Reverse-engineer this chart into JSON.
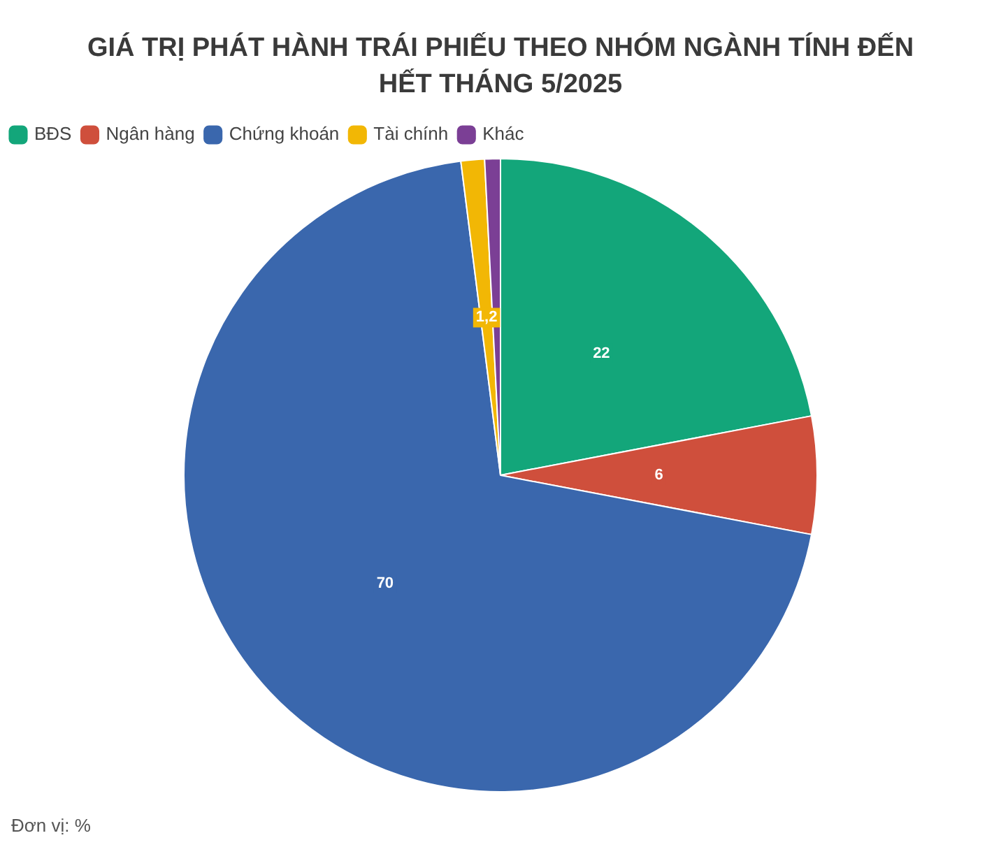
{
  "chart_data": {
    "type": "pie",
    "title": "GIÁ TRỊ PHÁT HÀNH TRÁI PHIẾU THEO NHÓM NGÀNH TÍNH ĐẾN HẾT THÁNG 5/2025",
    "categories": [
      "BĐS",
      "Ngân hàng",
      "Chứng khoán",
      "Tài chính",
      "Khác"
    ],
    "values": [
      22,
      6,
      70,
      1.2,
      0.8
    ],
    "colors": [
      "#13a67a",
      "#cf4f3c",
      "#3a67ad",
      "#f2b705",
      "#7b3f95"
    ],
    "value_labels": [
      "22",
      "6",
      "70",
      "1,2",
      null
    ],
    "legend": "top left",
    "annotations": [
      "Đơn vị: %"
    ]
  }
}
